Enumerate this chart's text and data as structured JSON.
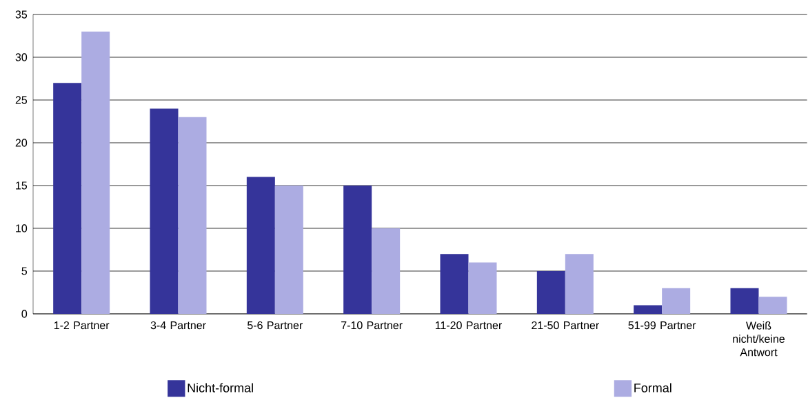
{
  "chart_data": {
    "type": "bar",
    "categories": [
      "1-2 Partner",
      "3-4 Partner",
      "5-6 Partner",
      "7-10 Partner",
      "11-20 Partner",
      "21-50 Partner",
      "51-99 Partner",
      "Weiß nicht/keine Antwort"
    ],
    "series": [
      {
        "name": "Nicht-formal",
        "color": "#35349a",
        "values": [
          27,
          24,
          16,
          15,
          7,
          5,
          1,
          3
        ]
      },
      {
        "name": "Formal",
        "color": "#acace2",
        "values": [
          33,
          23,
          15,
          10,
          6,
          7,
          3,
          2
        ]
      }
    ],
    "ylim": [
      0,
      35
    ],
    "yticks": [
      0,
      5,
      10,
      15,
      20,
      25,
      30,
      35
    ],
    "grid": "y",
    "legend": "bottom"
  }
}
